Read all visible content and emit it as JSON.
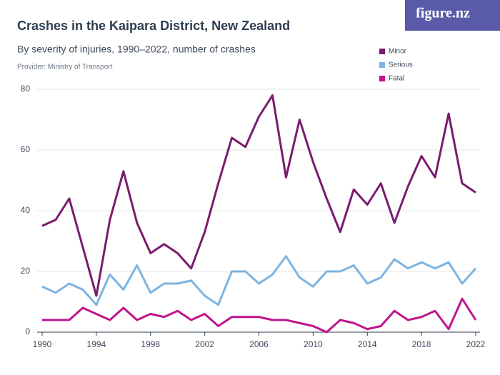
{
  "brand": "figure.nz",
  "chart_data": {
    "type": "line",
    "title": "Crashes in the Kaipara District, New Zealand",
    "subtitle": "By severity of injuries, 1990–2022, number of crashes",
    "source": "Provider: Ministry of Transport",
    "x": [
      1990,
      1991,
      1992,
      1993,
      1994,
      1995,
      1996,
      1997,
      1998,
      1999,
      2000,
      2001,
      2002,
      2003,
      2004,
      2005,
      2006,
      2007,
      2008,
      2009,
      2010,
      2011,
      2012,
      2013,
      2014,
      2015,
      2016,
      2017,
      2018,
      2019,
      2020,
      2021,
      2022
    ],
    "series": [
      {
        "name": "Minor",
        "color": "#7a1b6f",
        "values": [
          35,
          37,
          44,
          28,
          12,
          37,
          53,
          36,
          26,
          29,
          26,
          21,
          33,
          49,
          64,
          61,
          71,
          78,
          51,
          70,
          56,
          44,
          33,
          47,
          42,
          49,
          36,
          48,
          58,
          51,
          72,
          49,
          46
        ]
      },
      {
        "name": "Serious",
        "color": "#7db4e1",
        "values": [
          15,
          13,
          16,
          14,
          9,
          19,
          14,
          22,
          13,
          16,
          16,
          17,
          12,
          9,
          20,
          20,
          16,
          19,
          25,
          18,
          15,
          20,
          20,
          22,
          16,
          18,
          24,
          21,
          23,
          21,
          23,
          16,
          21
        ]
      },
      {
        "name": "Fatal",
        "color": "#c0158b",
        "values": [
          4,
          4,
          4,
          8,
          6,
          4,
          8,
          4,
          6,
          5,
          7,
          4,
          6,
          2,
          5,
          5,
          5,
          4,
          4,
          3,
          2,
          0,
          4,
          3,
          1,
          2,
          7,
          4,
          5,
          7,
          1,
          11,
          4
        ]
      }
    ],
    "xlim": [
      1990,
      2022
    ],
    "xticks": [
      1990,
      1994,
      1998,
      2002,
      2006,
      2010,
      2014,
      2018,
      2022
    ],
    "ylim": [
      0,
      80
    ],
    "yticks": [
      0,
      20,
      40,
      60,
      80
    ],
    "grid": true,
    "legend": "top-right"
  }
}
